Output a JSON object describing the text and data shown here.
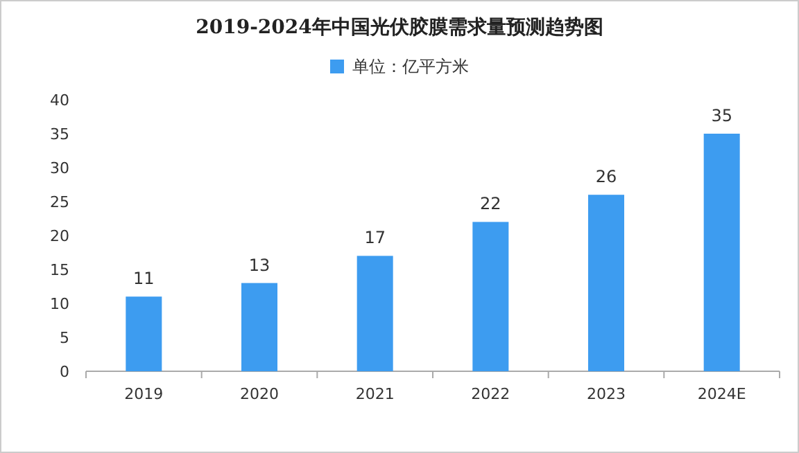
{
  "chart_data": {
    "type": "bar",
    "title": "2019-2024年中国光伏胶膜需求量预测趋势图",
    "categories": [
      "2019",
      "2020",
      "2021",
      "2022",
      "2023",
      "2024E"
    ],
    "series": [
      {
        "name": "单位：亿平方米",
        "color": "#3d9cf0",
        "values": [
          11,
          13,
          17,
          22,
          26,
          35
        ]
      }
    ],
    "ylim": [
      0,
      40
    ],
    "yticks": [
      0,
      5,
      10,
      15,
      20,
      25,
      30,
      35,
      40
    ],
    "data_labels": true,
    "legend": "top",
    "grid": false
  }
}
